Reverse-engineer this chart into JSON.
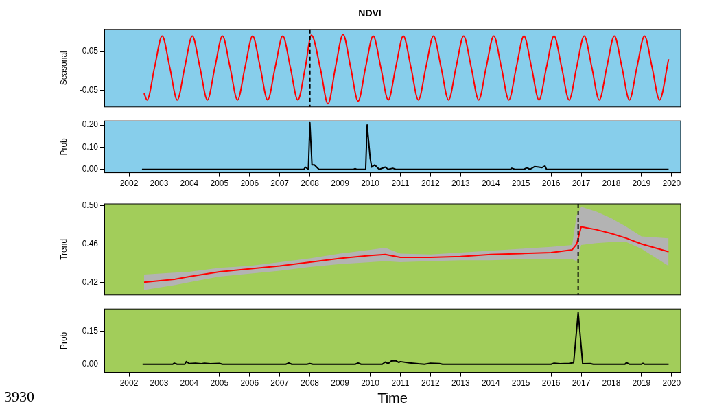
{
  "chart_data": [
    {
      "type": "line",
      "title": "NDVI",
      "ylabel": "Seasonal",
      "xlim": [
        2001.18,
        2020.3
      ],
      "xticks": [
        2002,
        2003,
        2004,
        2005,
        2006,
        2007,
        2008,
        2009,
        2010,
        2011,
        2012,
        2013,
        2014,
        2015,
        2016,
        2017,
        2018,
        2019,
        2020
      ],
      "ylim": [
        -0.093,
        0.107
      ],
      "yticks": [
        -0.05,
        0.05
      ],
      "tick_labels": "y",
      "ref_lines": [
        {
          "axis": "x",
          "value": 2008.0,
          "line_style": "dashed",
          "color": "#000000"
        }
      ],
      "series": [
        {
          "color": "#ff0000",
          "x": [
            2002.5,
            2002.6,
            2002.85,
            2003.1,
            2003.35,
            2003.6,
            2003.85,
            2004.1,
            2004.35,
            2004.6,
            2004.85,
            2005.1,
            2005.35,
            2005.6,
            2005.85,
            2006.1,
            2006.35,
            2006.6,
            2006.85,
            2007.1,
            2007.35,
            2007.6,
            2007.85,
            2008.05,
            2008.35,
            2008.6,
            2008.85,
            2009.1,
            2009.35,
            2009.6,
            2009.85,
            2010.1,
            2010.35,
            2010.6,
            2010.85,
            2011.1,
            2011.35,
            2011.6,
            2011.85,
            2012.1,
            2012.35,
            2012.6,
            2012.85,
            2013.1,
            2013.35,
            2013.6,
            2013.85,
            2014.1,
            2014.35,
            2014.6,
            2014.85,
            2015.1,
            2015.35,
            2015.6,
            2015.85,
            2016.1,
            2016.35,
            2016.6,
            2016.85,
            2017.1,
            2017.35,
            2017.6,
            2017.85,
            2018.1,
            2018.35,
            2018.6,
            2018.85,
            2019.1,
            2019.35,
            2019.6,
            2019.9
          ],
          "values": [
            -0.058,
            -0.075,
            0.01,
            0.09,
            0.01,
            -0.075,
            0.01,
            0.09,
            0.01,
            -0.075,
            0.01,
            0.09,
            0.01,
            -0.075,
            0.01,
            0.09,
            0.01,
            -0.075,
            0.01,
            0.09,
            0.01,
            -0.075,
            0.01,
            0.092,
            0.005,
            -0.085,
            0.01,
            0.094,
            0.01,
            -0.078,
            0.01,
            0.09,
            0.01,
            -0.075,
            0.01,
            0.09,
            0.01,
            -0.075,
            0.01,
            0.09,
            0.01,
            -0.075,
            0.01,
            0.09,
            0.01,
            -0.075,
            0.01,
            0.09,
            0.01,
            -0.075,
            0.01,
            0.09,
            0.01,
            -0.075,
            0.01,
            0.09,
            0.01,
            -0.075,
            0.01,
            0.09,
            0.01,
            -0.075,
            0.01,
            0.09,
            0.01,
            -0.075,
            0.01,
            0.09,
            0.01,
            -0.075,
            0.03
          ]
        }
      ]
    },
    {
      "type": "line",
      "ylabel": "Prob",
      "xlim": [
        2001.18,
        2020.3
      ],
      "xticks": [
        2002,
        2003,
        2004,
        2005,
        2006,
        2007,
        2008,
        2009,
        2010,
        2011,
        2012,
        2013,
        2014,
        2015,
        2016,
        2017,
        2018,
        2019,
        2020
      ],
      "ylim": [
        -0.015,
        0.218
      ],
      "yticks": [
        {
          "value": 0,
          "label": "0.00"
        },
        {
          "value": 0.1,
          "label": "0.10"
        },
        {
          "value": 0.2,
          "label": "0.20"
        }
      ],
      "series": [
        {
          "color": "#000000",
          "x": [
            2002.43,
            2007.8,
            2007.85,
            2007.95,
            2008.0,
            2008.07,
            2008.15,
            2008.3,
            2009.45,
            2009.5,
            2009.55,
            2009.85,
            2009.9,
            2010.0,
            2010.05,
            2010.15,
            2010.3,
            2010.5,
            2010.6,
            2010.75,
            2010.85,
            2014.65,
            2014.7,
            2014.8,
            2015.1,
            2015.2,
            2015.3,
            2015.45,
            2015.6,
            2015.7,
            2015.8,
            2015.85,
            2019.9
          ],
          "values": [
            0,
            0,
            0.01,
            0,
            0.21,
            0.02,
            0.02,
            0,
            0,
            0.003,
            0,
            0,
            0.2,
            0.05,
            0.01,
            0.02,
            0,
            0.01,
            0,
            0.005,
            0,
            0,
            0.005,
            0,
            0,
            0.007,
            0,
            0.012,
            0.01,
            0.008,
            0.015,
            0,
            0
          ]
        }
      ]
    },
    {
      "type": "line",
      "ylabel": "Trend",
      "xlim": [
        2001.18,
        2020.3
      ],
      "xticks": [
        2002,
        2003,
        2004,
        2005,
        2006,
        2007,
        2008,
        2009,
        2010,
        2011,
        2012,
        2013,
        2014,
        2015,
        2016,
        2017,
        2018,
        2019,
        2020
      ],
      "ylim": [
        0.4067,
        0.502
      ],
      "yticks": [
        0.42,
        0.46,
        {
          "value": 0.5,
          "label": "0.50"
        }
      ],
      "tick_labels": "y",
      "ref_lines": [
        {
          "axis": "x",
          "value": 2016.9,
          "line_style": "dashed",
          "color": "#000000"
        }
      ],
      "series": [
        {
          "color": "#ff0000",
          "x": [
            2002.5,
            2003.5,
            2004,
            2005,
            2006,
            2007,
            2008,
            2009,
            2010,
            2010.5,
            2011,
            2012,
            2013,
            2014,
            2015,
            2016,
            2016.7,
            2016.85,
            2017,
            2017.5,
            2018,
            2018.5,
            2019,
            2019.9
          ],
          "values": [
            0.42,
            0.423,
            0.426,
            0.431,
            0.434,
            0.437,
            0.441,
            0.445,
            0.448,
            0.449,
            0.446,
            0.446,
            0.447,
            0.449,
            0.45,
            0.451,
            0.454,
            0.46,
            0.478,
            0.475,
            0.471,
            0.466,
            0.46,
            0.452
          ],
          "lower": [
            0.412,
            0.417,
            0.42,
            0.426,
            0.429,
            0.432,
            0.436,
            0.439,
            0.441,
            0.442,
            0.441,
            0.442,
            0.443,
            0.443,
            0.444,
            0.444,
            0.444,
            0.442,
            0.459,
            0.461,
            0.462,
            0.462,
            0.455,
            0.437
          ],
          "upper": [
            0.428,
            0.43,
            0.431,
            0.435,
            0.437,
            0.441,
            0.445,
            0.45,
            0.454,
            0.456,
            0.45,
            0.449,
            0.451,
            0.453,
            0.455,
            0.457,
            0.459,
            0.49,
            0.499,
            0.494,
            0.487,
            0.478,
            0.468,
            0.466
          ]
        }
      ]
    },
    {
      "type": "line",
      "ylabel": "Prob",
      "xlabel": "Time",
      "annotations": [
        "3930"
      ],
      "xlim": [
        2001.18,
        2020.3
      ],
      "xticks": [
        2002,
        2003,
        2004,
        2005,
        2006,
        2007,
        2008,
        2009,
        2010,
        2011,
        2012,
        2013,
        2014,
        2015,
        2016,
        2017,
        2018,
        2019,
        2020
      ],
      "ylim": [
        -0.037,
        0.251
      ],
      "yticks": [
        {
          "value": 0,
          "label": "0.00"
        },
        0.15
      ],
      "series": [
        {
          "color": "#000000",
          "x": [
            2002.45,
            2003.45,
            2003.5,
            2003.6,
            2003.85,
            2003.9,
            2004.0,
            2004.2,
            2004.4,
            2004.5,
            2004.7,
            2005.0,
            2005.1,
            2007.2,
            2007.3,
            2007.4,
            2007.9,
            2008.0,
            2008.1,
            2009.5,
            2009.6,
            2009.7,
            2010.4,
            2010.5,
            2010.6,
            2010.7,
            2010.85,
            2010.95,
            2011.0,
            2011.3,
            2011.6,
            2011.8,
            2012.0,
            2012.3,
            2012.4,
            2016.0,
            2016.1,
            2016.3,
            2016.6,
            2016.75,
            2016.9,
            2017.05,
            2017.3,
            2017.4,
            2018.45,
            2018.5,
            2018.6,
            2019.0,
            2019.05,
            2019.1,
            2019.9
          ],
          "values": [
            0,
            0,
            0.005,
            0,
            0,
            0.012,
            0.003,
            0.005,
            0.002,
            0.005,
            0.002,
            0.004,
            0,
            0,
            0.006,
            0,
            0,
            0.003,
            0,
            0,
            0.006,
            0,
            0,
            0.01,
            0.003,
            0.015,
            0.016,
            0.008,
            0.012,
            0.006,
            0.002,
            0,
            0.005,
            0.003,
            0,
            0,
            0.005,
            0.002,
            0.004,
            0.007,
            0.236,
            0.002,
            0.003,
            0,
            0,
            0.007,
            0,
            0,
            0.004,
            0,
            0
          ]
        }
      ]
    }
  ]
}
